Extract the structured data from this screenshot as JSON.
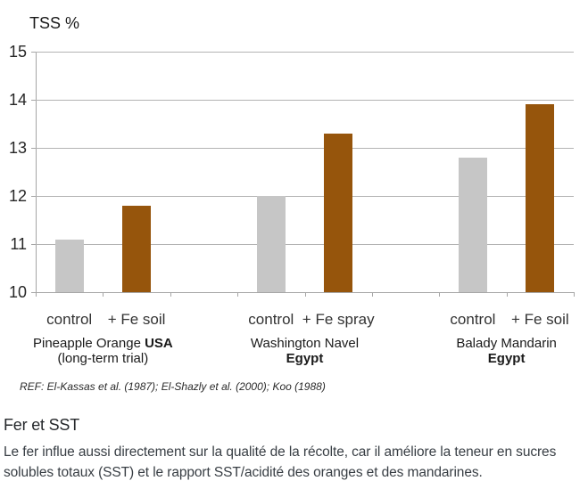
{
  "chart_data": {
    "type": "bar",
    "title": "TSS %",
    "xlabel": "",
    "ylabel": "TSS %",
    "ylim": [
      10,
      15
    ],
    "ytick_step": 1,
    "grid": true,
    "legend": "none",
    "colors": {
      "control": "#C6C6C6",
      "fe_treatment": "#96550C"
    },
    "groups": [
      {
        "label": "Pineapple Orange",
        "label_bold": "USA",
        "sublabel": "(long-term trial)",
        "sublabel_bold": "",
        "bars": [
          {
            "label": "control",
            "value": 11.1,
            "series": "control"
          },
          {
            "label": "+ Fe soil",
            "value": 11.8,
            "series": "fe_treatment"
          }
        ]
      },
      {
        "label": "Washington Navel",
        "label_bold": "",
        "sublabel": "",
        "sublabel_bold": "Egypt",
        "bars": [
          {
            "label": "control",
            "value": 12.0,
            "series": "control"
          },
          {
            "label": "+ Fe spray",
            "value": 13.3,
            "series": "fe_treatment"
          }
        ]
      },
      {
        "label": "Balady Mandarin",
        "label_bold": "",
        "sublabel": "",
        "sublabel_bold": "Egypt",
        "bars": [
          {
            "label": "control",
            "value": 12.8,
            "series": "control"
          },
          {
            "label": "+ Fe soil",
            "value": 13.9,
            "series": "fe_treatment"
          }
        ]
      }
    ],
    "footnote": "REF: El-Kassas et al. (1987); El-Shazly et al. (2000); Koo (1988)"
  },
  "article": {
    "heading": "Fer et SST",
    "body": "Le fer influe aussi directement sur la qualité de la récolte, car il améliore la teneur en sucres solubles totaux (SST) et le rapport SST/acidité des oranges et des mandarines."
  }
}
